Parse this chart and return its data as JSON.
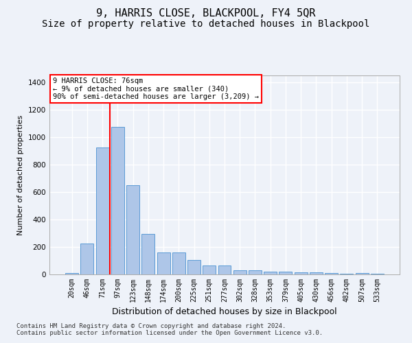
{
  "title": "9, HARRIS CLOSE, BLACKPOOL, FY4 5QR",
  "subtitle": "Size of property relative to detached houses in Blackpool",
  "xlabel": "Distribution of detached houses by size in Blackpool",
  "ylabel": "Number of detached properties",
  "categories": [
    "20sqm",
    "46sqm",
    "71sqm",
    "97sqm",
    "123sqm",
    "148sqm",
    "174sqm",
    "200sqm",
    "225sqm",
    "251sqm",
    "277sqm",
    "302sqm",
    "328sqm",
    "353sqm",
    "379sqm",
    "405sqm",
    "430sqm",
    "456sqm",
    "482sqm",
    "507sqm",
    "533sqm"
  ],
  "values": [
    10,
    225,
    925,
    1075,
    650,
    295,
    160,
    160,
    105,
    65,
    65,
    32,
    32,
    20,
    20,
    15,
    15,
    10,
    5,
    10,
    5
  ],
  "bar_color": "#aec6e8",
  "bar_edge_color": "#5b9bd5",
  "annotation_text": "9 HARRIS CLOSE: 76sqm\n← 9% of detached houses are smaller (340)\n90% of semi-detached houses are larger (3,209) →",
  "red_line_x": 2.5,
  "ylim": [
    0,
    1450
  ],
  "yticks": [
    0,
    200,
    400,
    600,
    800,
    1000,
    1200,
    1400
  ],
  "footer_line1": "Contains HM Land Registry data © Crown copyright and database right 2024.",
  "footer_line2": "Contains public sector information licensed under the Open Government Licence v3.0.",
  "background_color": "#eef2f9",
  "grid_color": "#ffffff",
  "title_fontsize": 11,
  "subtitle_fontsize": 10,
  "tick_fontsize": 7,
  "ylabel_fontsize": 8,
  "xlabel_fontsize": 9,
  "footer_fontsize": 6.5,
  "annotation_fontsize": 7.5
}
